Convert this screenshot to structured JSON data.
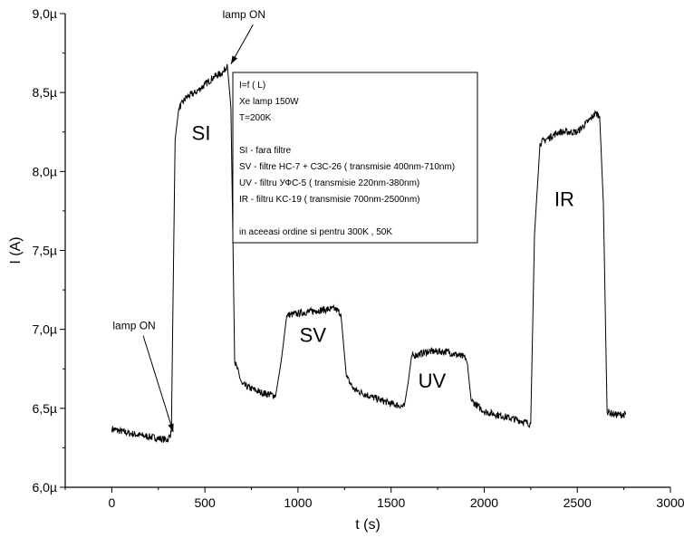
{
  "chart_data": {
    "type": "line",
    "xlabel": "t (s)",
    "ylabel": "I (A)",
    "xlim": [
      -250,
      3000
    ],
    "ylim": [
      6.0,
      9.0
    ],
    "y_unit_suffix": "µ",
    "xticks": [
      0,
      500,
      1000,
      1500,
      2000,
      2500,
      3000
    ],
    "yticks": [
      6.0,
      6.5,
      7.0,
      7.5,
      8.0,
      8.5,
      9.0
    ],
    "ytick_labels": [
      "6,0µ",
      "6,5µ",
      "7,0µ",
      "7,5µ",
      "8,0µ",
      "8,5µ",
      "9,0µ"
    ],
    "grid": false,
    "series": [
      {
        "x": [
          0,
          100,
          200,
          300,
          320,
          340,
          360,
          400,
          450,
          500,
          550,
          600,
          620,
          640,
          660,
          700,
          800,
          880,
          910,
          940,
          1000,
          1100,
          1200,
          1230,
          1260,
          1300,
          1400,
          1500,
          1570,
          1590,
          1610,
          1700,
          1800,
          1900,
          1910,
          1930,
          2000,
          2100,
          2200,
          2250,
          2270,
          2300,
          2400,
          2500,
          2560,
          2600,
          2620,
          2640,
          2660,
          2700,
          2760
        ],
        "y": [
          6.37,
          6.34,
          6.32,
          6.3,
          6.35,
          8.2,
          8.4,
          8.47,
          8.5,
          8.55,
          8.6,
          8.63,
          8.68,
          8.4,
          6.8,
          6.65,
          6.6,
          6.58,
          6.8,
          7.09,
          7.1,
          7.12,
          7.13,
          7.1,
          6.7,
          6.62,
          6.57,
          6.53,
          6.51,
          6.65,
          6.83,
          6.86,
          6.86,
          6.82,
          6.78,
          6.55,
          6.48,
          6.45,
          6.42,
          6.4,
          7.6,
          8.18,
          8.25,
          8.25,
          8.32,
          8.37,
          8.35,
          7.8,
          6.48,
          6.46,
          6.46
        ]
      }
    ],
    "segment_labels": [
      {
        "text": "SI",
        "x": 480,
        "y": 8.2
      },
      {
        "text": "SV",
        "x": 1080,
        "y": 6.92
      },
      {
        "text": "UV",
        "x": 1720,
        "y": 6.63
      },
      {
        "text": "IR",
        "x": 2430,
        "y": 7.78
      }
    ],
    "annotations": [
      {
        "text": "lamp ON",
        "label_x": 120,
        "label_y": 7.0,
        "arrow_x": 330,
        "arrow_y": 6.35
      },
      {
        "text": "lamp ON",
        "label_x": 710,
        "label_y": 8.97,
        "arrow_x": 640,
        "arrow_y": 8.68
      }
    ],
    "legend_position": "upper-middle",
    "legend_lines": [
      "I=f ( L)",
      "Xe lamp 150W",
      "T=200K",
      "",
      "SI - fara filtre",
      "SV - filtre HC-7 + C3C-26  ( transmisie 400nm-710nm)",
      "UV - filtru УФС-5   ( transmisie 220nm-380nm)",
      "IR - filtru KC-19   ( transmisie 700nm-2500nm)",
      "",
      "in aceeasi ordine si pentru 300K ,  50K"
    ]
  }
}
